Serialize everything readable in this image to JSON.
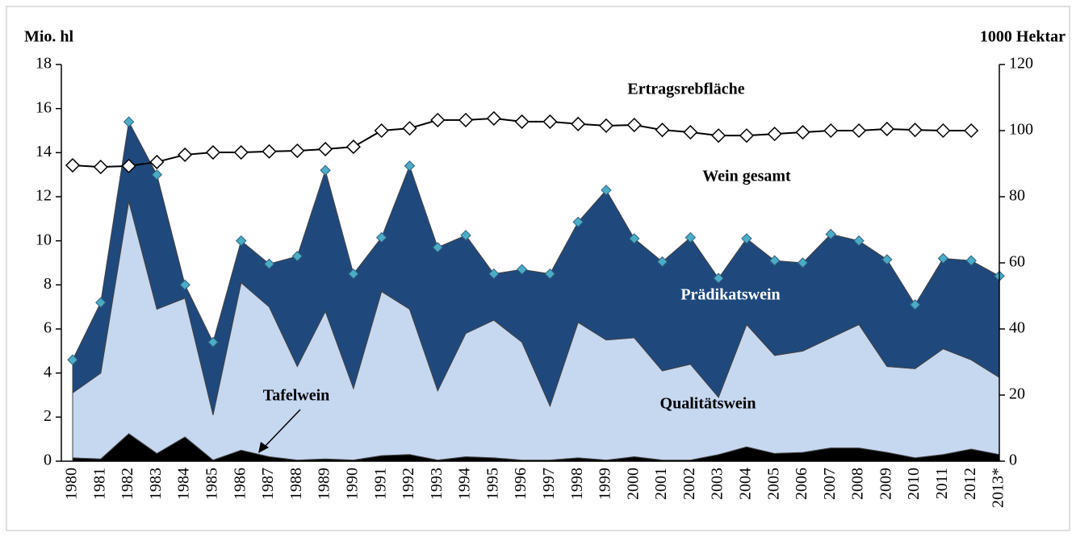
{
  "chart_data": {
    "type": "area",
    "y_label": "Mio. hl",
    "y2_label": "1000 Hektar",
    "total_label": "Wein gesamt",
    "categories": [
      "1980",
      "1981",
      "1982",
      "1983",
      "1984",
      "1985",
      "1986",
      "1987",
      "1988",
      "1989",
      "1990",
      "1991",
      "1992",
      "1993",
      "1994",
      "1995",
      "1996",
      "1997",
      "1998",
      "1999",
      "2000",
      "2001",
      "2002",
      "2003",
      "2004",
      "2005",
      "2006",
      "2007",
      "2008",
      "2009",
      "2010",
      "2011",
      "2012",
      "2013*"
    ],
    "series": [
      {
        "name": "Tafelwein",
        "type": "area",
        "color": "#000000",
        "values": [
          0.15,
          0.1,
          1.25,
          0.35,
          1.1,
          0.05,
          0.5,
          0.2,
          0.05,
          0.1,
          0.05,
          0.25,
          0.3,
          0.05,
          0.2,
          0.15,
          0.05,
          0.05,
          0.15,
          0.05,
          0.2,
          0.05,
          0.05,
          0.3,
          0.65,
          0.35,
          0.4,
          0.6,
          0.6,
          0.4,
          0.15,
          0.3,
          0.55,
          0.3
        ]
      },
      {
        "name": "Qualitätswein",
        "type": "area",
        "color": "#c6d7f0",
        "values": [
          2.95,
          3.9,
          10.55,
          6.55,
          6.3,
          2.05,
          7.6,
          6.8,
          4.25,
          6.7,
          3.25,
          7.45,
          6.6,
          3.15,
          5.6,
          6.25,
          5.35,
          2.45,
          6.15,
          5.45,
          5.4,
          4.05,
          4.35,
          2.6,
          5.55,
          4.45,
          4.6,
          5.0,
          5.6,
          3.9,
          4.05,
          4.8,
          4.05,
          3.5
        ]
      },
      {
        "name": "Prädikatswein",
        "type": "area",
        "color": "#1f497d",
        "marker_color": "#4bacc6",
        "values": [
          1.5,
          3.2,
          3.6,
          6.1,
          0.6,
          3.3,
          1.9,
          1.95,
          5.0,
          6.4,
          5.2,
          2.45,
          6.5,
          6.5,
          4.45,
          2.1,
          3.3,
          6.0,
          4.55,
          6.8,
          4.5,
          4.95,
          5.75,
          5.4,
          3.9,
          4.3,
          4.0,
          4.7,
          3.8,
          4.85,
          2.9,
          4.1,
          4.5,
          4.6
        ]
      },
      {
        "name": "Ertragsrebfläche",
        "type": "line",
        "axis": "y2",
        "color": "#000000",
        "values": [
          89.5,
          89,
          89.3,
          90.5,
          92.7,
          93.4,
          93.4,
          93.7,
          93.9,
          94.4,
          95.1,
          100,
          100.7,
          103.2,
          103.2,
          103.7,
          102.7,
          102.7,
          102,
          101.5,
          101.7,
          100.2,
          99.5,
          98.5,
          98.5,
          99,
          99.5,
          100,
          100,
          100.5,
          100.2,
          100,
          100,
          null
        ]
      }
    ],
    "ylim": [
      0,
      18
    ],
    "yticks": [
      0,
      2,
      4,
      6,
      8,
      10,
      12,
      14,
      16,
      18
    ],
    "y2lim": [
      0,
      120
    ],
    "y2ticks": [
      0,
      20,
      40,
      60,
      80,
      100,
      120
    ]
  }
}
